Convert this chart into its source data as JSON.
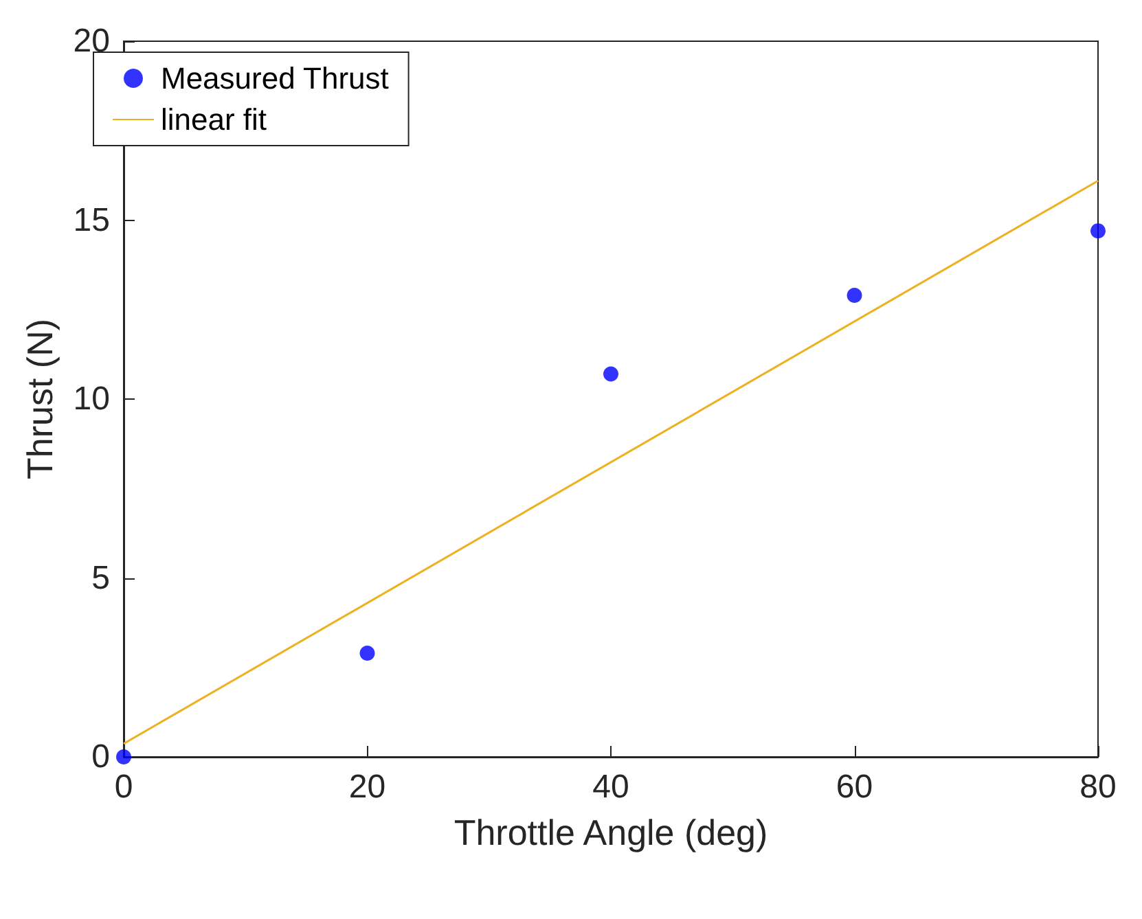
{
  "chart_data": {
    "type": "scatter",
    "xlabel": "Throttle Angle (deg)",
    "ylabel": "Thrust (N)",
    "xlim": [
      0,
      80
    ],
    "ylim": [
      0,
      20
    ],
    "xticks": [
      0,
      20,
      40,
      60,
      80
    ],
    "yticks": [
      0,
      5,
      10,
      15,
      20
    ],
    "grid": false,
    "legend": "top left",
    "series": [
      {
        "name": "Measured Thrust",
        "color": "#0000ff",
        "marker": "circle",
        "x": [
          0,
          20,
          40,
          60,
          80
        ],
        "values": [
          0,
          2.9,
          10.7,
          12.9,
          14.7
        ]
      },
      {
        "name": "linear fit",
        "type": "line",
        "color": "#edb120",
        "x": [
          0,
          80
        ],
        "values": [
          0.37,
          16.1
        ]
      }
    ]
  }
}
